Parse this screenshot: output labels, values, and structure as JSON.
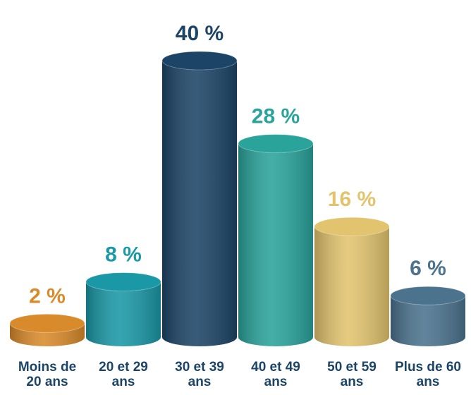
{
  "chart_data": {
    "type": "bar3d",
    "categories": [
      "Moins de 20 ans",
      "20 et 29 ans",
      "30 et 39 ans",
      "40 et 49 ans",
      "50 et 59 ans",
      "Plus de 60 ans"
    ],
    "values": [
      2,
      8,
      40,
      28,
      16,
      6
    ],
    "value_labels": [
      "2 %",
      "8 %",
      "40 %",
      "28 %",
      "16 %",
      "6 %"
    ],
    "colors": [
      "#d98a2b",
      "#1a98a6",
      "#1c4466",
      "#2aa39b",
      "#e2c46e",
      "#4b738e"
    ],
    "label_color": "#1c4466"
  }
}
